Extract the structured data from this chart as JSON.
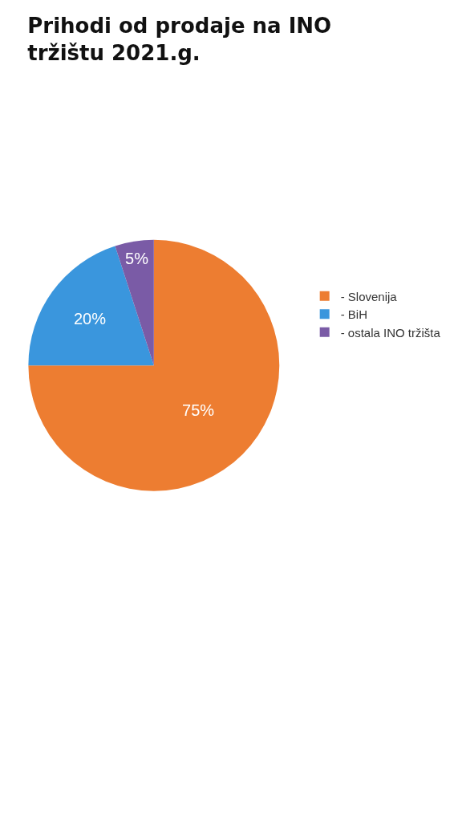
{
  "chart_data": {
    "type": "pie",
    "title": "Prihodi od prodaje na INO tržištu 2021.g.",
    "categories": [
      "- Slovenija",
      "- BiH",
      "- ostala INO tržišta"
    ],
    "values": [
      75,
      20,
      5
    ],
    "colors": [
      "#ed7d31",
      "#3a96dd",
      "#7a5ba6"
    ],
    "value_labels": [
      "75%",
      "20%",
      "5%"
    ],
    "legend": "right"
  }
}
